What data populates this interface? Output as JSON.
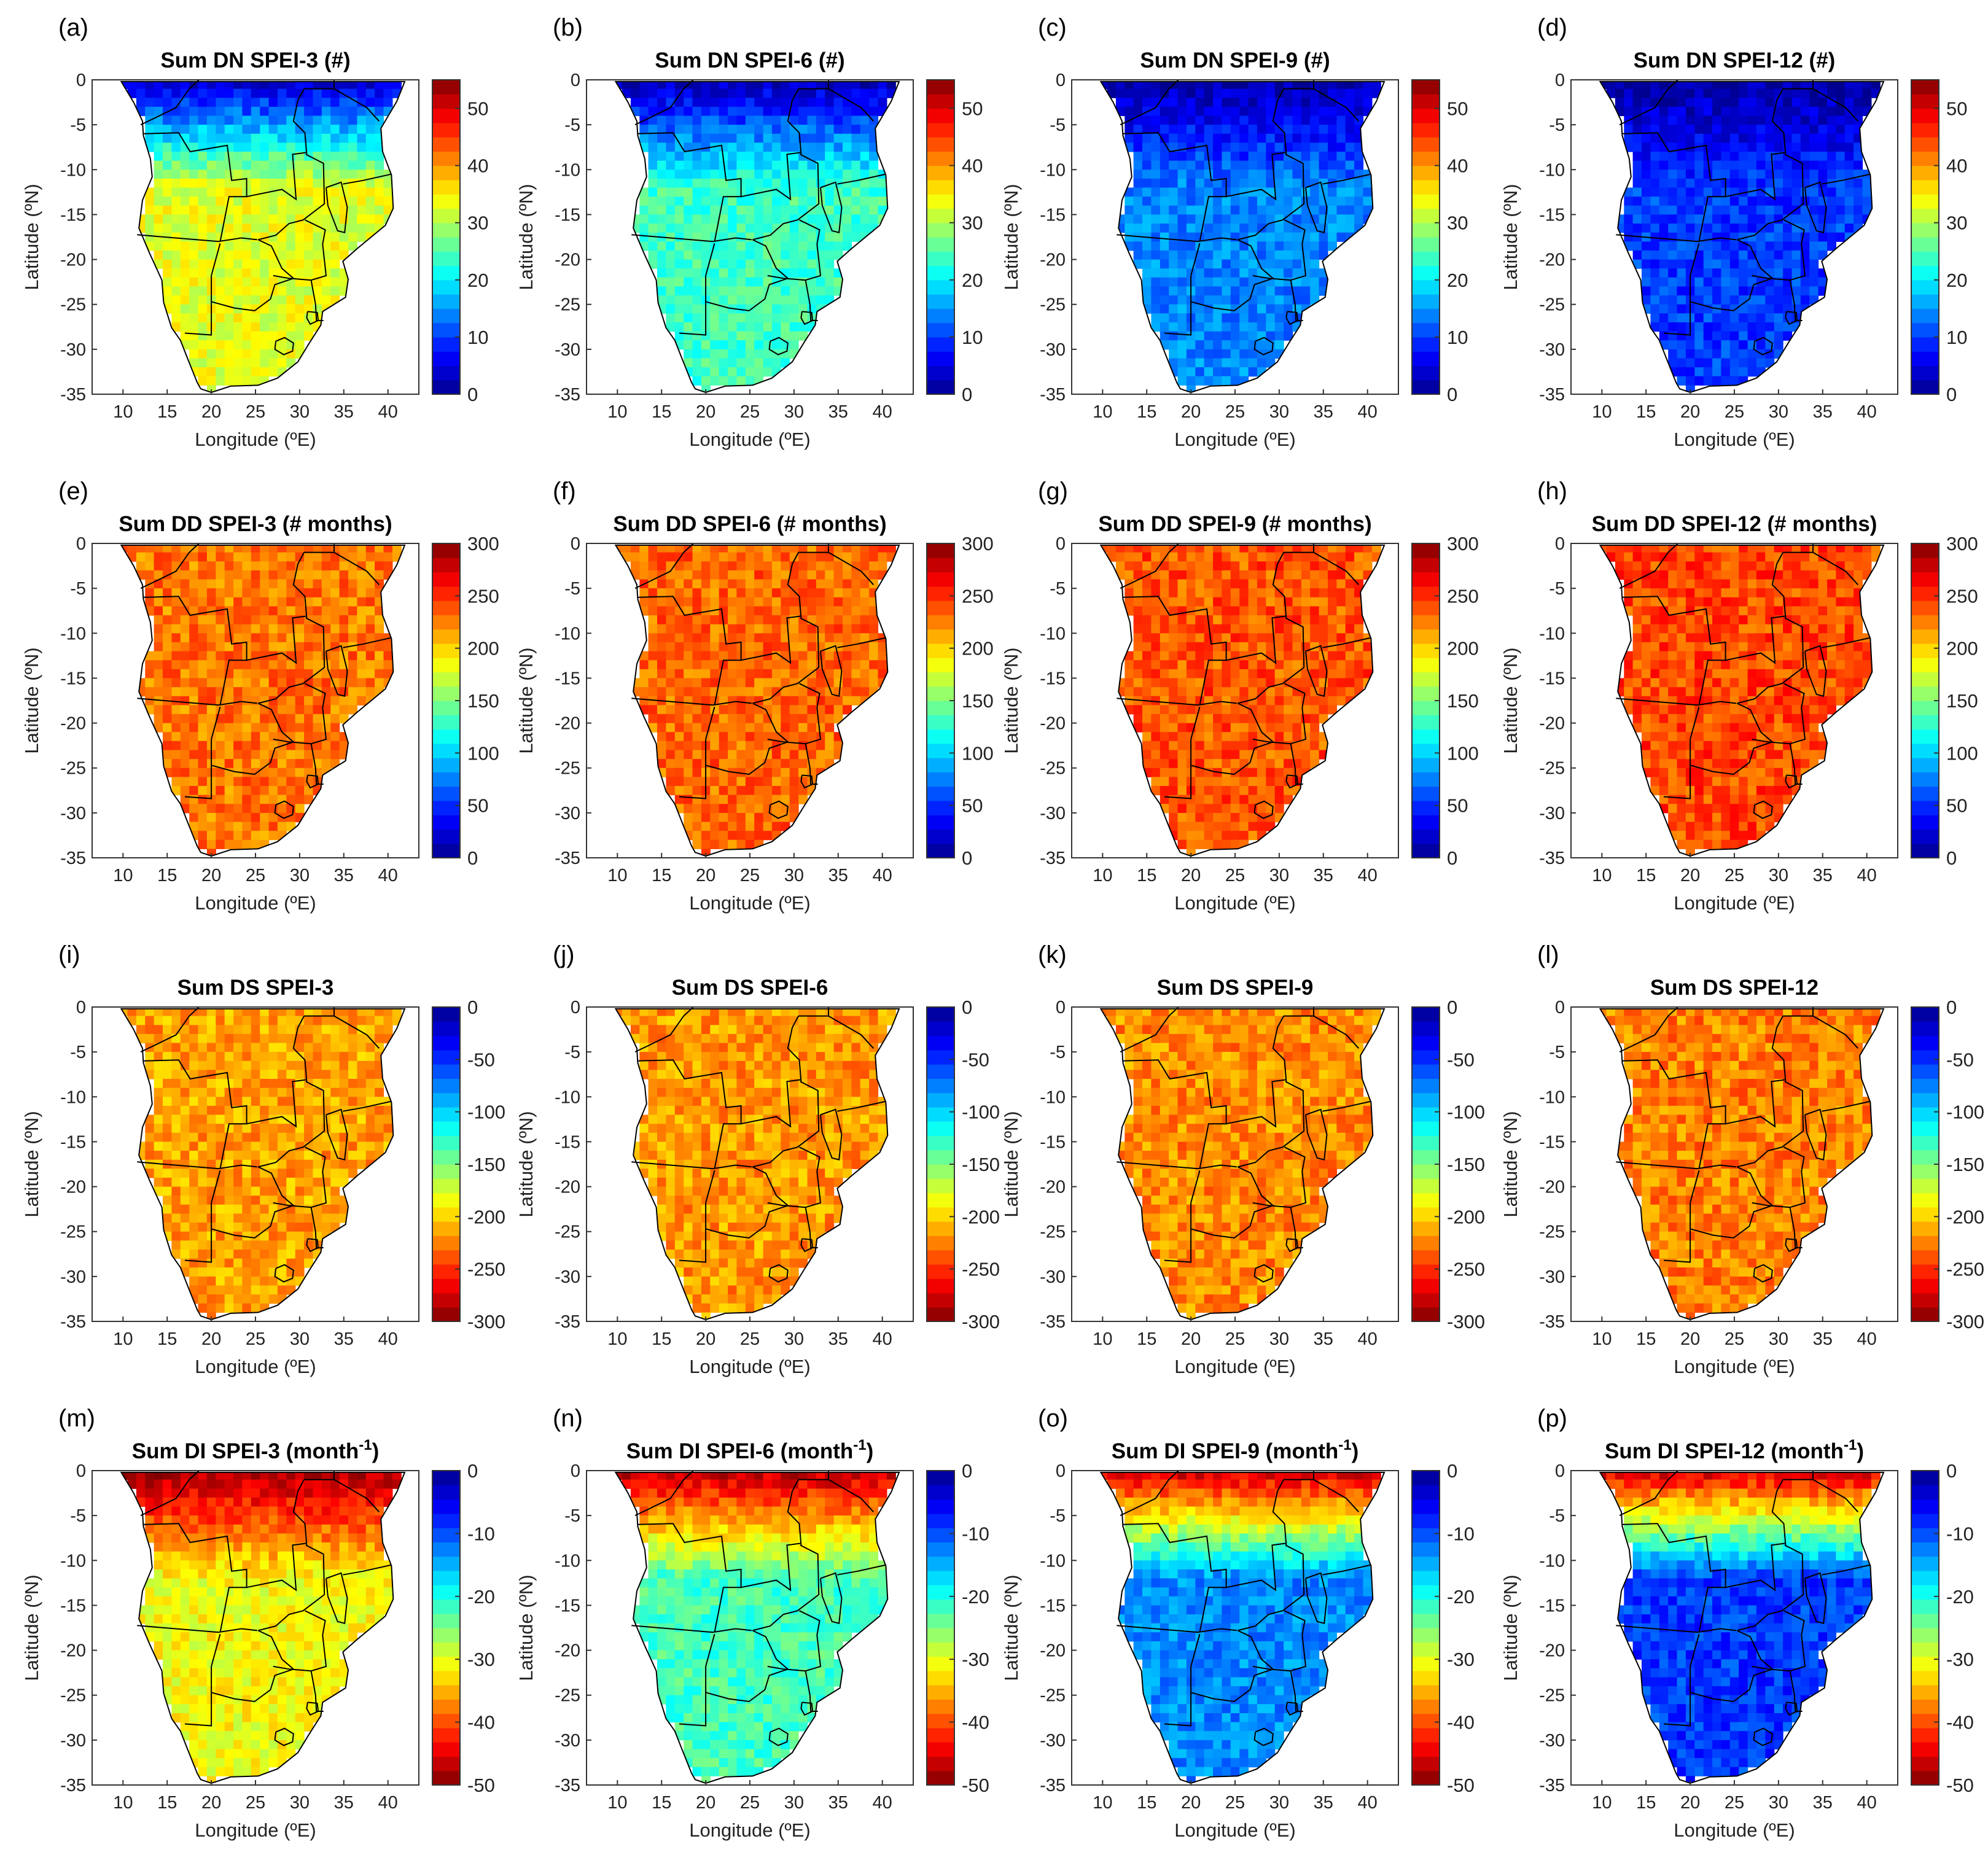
{
  "figure": {
    "rows": 4,
    "cols": 4
  },
  "axes": {
    "xlabel": "Longitude (ºE)",
    "ylabel": "Latitude (ºN)",
    "x_ticks": [
      10,
      15,
      20,
      25,
      30,
      35,
      40
    ],
    "x_range": [
      6.5,
      43.5
    ],
    "y_ticks": [
      0,
      -5,
      -10,
      -15,
      -20,
      -25,
      -30,
      -35
    ],
    "y_range": [
      -35,
      0
    ]
  },
  "colormaps": {
    "jet": [
      "#00008f",
      "#0000ff",
      "#0080ff",
      "#00ffff",
      "#80ff80",
      "#ffff00",
      "#ff8000",
      "#ff0000",
      "#800000"
    ],
    "jet_reversed": [
      "#800000",
      "#ff0000",
      "#ff8000",
      "#ffff00",
      "#80ff80",
      "#00ffff",
      "#0080ff",
      "#0000ff",
      "#00008f"
    ]
  },
  "chart_data": [
    {
      "type": "heatmap",
      "letter": "(a)",
      "title": "Sum DN SPEI-3 (#)",
      "colorbar": {
        "range": [
          0,
          55
        ],
        "ticks": [
          0,
          10,
          20,
          30,
          40,
          50
        ],
        "cmap": "jet"
      },
      "typical_value": 33
    },
    {
      "type": "heatmap",
      "letter": "(b)",
      "title": "Sum DN SPEI-6 (#)",
      "colorbar": {
        "range": [
          0,
          55
        ],
        "ticks": [
          0,
          10,
          20,
          30,
          40,
          50
        ],
        "cmap": "jet"
      },
      "typical_value": 24
    },
    {
      "type": "heatmap",
      "letter": "(c)",
      "title": "Sum DN SPEI-9 (#)",
      "colorbar": {
        "range": [
          0,
          55
        ],
        "ticks": [
          0,
          10,
          20,
          30,
          40,
          50
        ],
        "cmap": "jet"
      },
      "typical_value": 14
    },
    {
      "type": "heatmap",
      "letter": "(d)",
      "title": "Sum DN SPEI-12 (#)",
      "colorbar": {
        "range": [
          0,
          55
        ],
        "ticks": [
          0,
          10,
          20,
          30,
          40,
          50
        ],
        "cmap": "jet"
      },
      "typical_value": 10
    },
    {
      "type": "heatmap",
      "letter": "(e)",
      "title": "Sum DD SPEI-3 (# months)",
      "colorbar": {
        "range": [
          0,
          300
        ],
        "ticks": [
          0,
          50,
          100,
          150,
          200,
          250,
          300
        ],
        "cmap": "jet"
      },
      "typical_value": 228
    },
    {
      "type": "heatmap",
      "letter": "(f)",
      "title": "Sum DD SPEI-6 (# months)",
      "colorbar": {
        "range": [
          0,
          300
        ],
        "ticks": [
          0,
          50,
          100,
          150,
          200,
          250,
          300
        ],
        "cmap": "jet"
      },
      "typical_value": 232
    },
    {
      "type": "heatmap",
      "letter": "(g)",
      "title": "Sum DD SPEI-9 (# months)",
      "colorbar": {
        "range": [
          0,
          300
        ],
        "ticks": [
          0,
          50,
          100,
          150,
          200,
          250,
          300
        ],
        "cmap": "jet"
      },
      "typical_value": 238
    },
    {
      "type": "heatmap",
      "letter": "(h)",
      "title": "Sum DD SPEI-12 (# months)",
      "colorbar": {
        "range": [
          0,
          300
        ],
        "ticks": [
          0,
          50,
          100,
          150,
          200,
          250,
          300
        ],
        "cmap": "jet"
      },
      "typical_value": 242
    },
    {
      "type": "heatmap",
      "letter": "(i)",
      "title": "Sum DS SPEI-3",
      "colorbar": {
        "range": [
          -300,
          0
        ],
        "ticks": [
          0,
          -50,
          -100,
          -150,
          -200,
          -250,
          -300
        ],
        "cmap": "jet_reversed"
      },
      "typical_value": -215
    },
    {
      "type": "heatmap",
      "letter": "(j)",
      "title": "Sum DS SPEI-6",
      "colorbar": {
        "range": [
          -300,
          0
        ],
        "ticks": [
          0,
          -50,
          -100,
          -150,
          -200,
          -250,
          -300
        ],
        "cmap": "jet_reversed"
      },
      "typical_value": -218
    },
    {
      "type": "heatmap",
      "letter": "(k)",
      "title": "Sum DS SPEI-9",
      "colorbar": {
        "range": [
          -300,
          0
        ],
        "ticks": [
          0,
          -50,
          -100,
          -150,
          -200,
          -250,
          -300
        ],
        "cmap": "jet_reversed"
      },
      "typical_value": -222
    },
    {
      "type": "heatmap",
      "letter": "(l)",
      "title": "Sum DS SPEI-12",
      "colorbar": {
        "range": [
          -300,
          0
        ],
        "ticks": [
          0,
          -50,
          -100,
          -150,
          -200,
          -250,
          -300
        ],
        "cmap": "jet_reversed"
      },
      "typical_value": -225
    },
    {
      "type": "heatmap",
      "letter": "(m)",
      "title": "Sum DI SPEI-3 (month",
      "title_sup": "-1",
      "title_end": ")",
      "colorbar": {
        "range": [
          -50,
          0
        ],
        "ticks": [
          0,
          -10,
          -20,
          -30,
          -40,
          -50
        ],
        "cmap": "jet_reversed"
      },
      "typical_value": -31
    },
    {
      "type": "heatmap",
      "letter": "(n)",
      "title": "Sum DI SPEI-6 (month",
      "title_sup": "-1",
      "title_end": ")",
      "colorbar": {
        "range": [
          -50,
          0
        ],
        "ticks": [
          0,
          -10,
          -20,
          -30,
          -40,
          -50
        ],
        "cmap": "jet_reversed"
      },
      "typical_value": -22
    },
    {
      "type": "heatmap",
      "letter": "(o)",
      "title": "Sum DI SPEI-9 (month",
      "title_sup": "-1",
      "title_end": ")",
      "colorbar": {
        "range": [
          -50,
          0
        ],
        "ticks": [
          0,
          -10,
          -20,
          -30,
          -40,
          -50
        ],
        "cmap": "jet_reversed"
      },
      "typical_value": -13
    },
    {
      "type": "heatmap",
      "letter": "(p)",
      "title": "Sum DI SPEI-12 (month",
      "title_sup": "-1",
      "title_end": ")",
      "colorbar": {
        "range": [
          -50,
          0
        ],
        "ticks": [
          0,
          -10,
          -20,
          -30,
          -40,
          -50
        ],
        "cmap": "jet_reversed"
      },
      "typical_value": -9
    }
  ]
}
